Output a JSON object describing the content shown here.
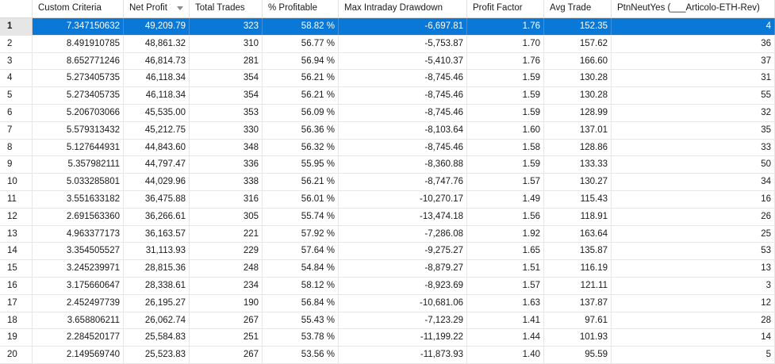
{
  "columns": [
    {
      "key": "idx",
      "label": ""
    },
    {
      "key": "custom_criteria",
      "label": "Custom Criteria"
    },
    {
      "key": "net_profit",
      "label": "Net Profit"
    },
    {
      "key": "total_trades",
      "label": "Total Trades"
    },
    {
      "key": "pct_profitable",
      "label": "% Profitable"
    },
    {
      "key": "max_intraday_drawdown",
      "label": "Max Intraday Drawdown"
    },
    {
      "key": "profit_factor",
      "label": "Profit Factor"
    },
    {
      "key": "avg_trade",
      "label": "Avg Trade"
    },
    {
      "key": "ptn_neut_yes",
      "label": "PtnNeutYes (___Articolo-ETH-Rev)"
    }
  ],
  "sort": {
    "column": "net_profit",
    "direction": "descending",
    "icon": "sort-descending-icon"
  },
  "selected_row": 0,
  "colors": {
    "selection": "#0a78d7",
    "selection_text": "#ffffff",
    "grid_line": "#e6e6e6"
  },
  "rows": [
    [
      "1",
      "7.347150632",
      "49,209.79",
      "323",
      "58.82 %",
      "-6,697.81",
      "1.76",
      "152.35",
      "4"
    ],
    [
      "2",
      "8.491910785",
      "48,861.32",
      "310",
      "56.77 %",
      "-5,753.87",
      "1.70",
      "157.62",
      "36"
    ],
    [
      "3",
      "8.652771246",
      "46,814.73",
      "281",
      "56.94 %",
      "-5,410.37",
      "1.76",
      "166.60",
      "37"
    ],
    [
      "4",
      "5.273405735",
      "46,118.34",
      "354",
      "56.21 %",
      "-8,745.46",
      "1.59",
      "130.28",
      "31"
    ],
    [
      "5",
      "5.273405735",
      "46,118.34",
      "354",
      "56.21 %",
      "-8,745.46",
      "1.59",
      "130.28",
      "55"
    ],
    [
      "6",
      "5.206703066",
      "45,535.00",
      "353",
      "56.09 %",
      "-8,745.46",
      "1.59",
      "128.99",
      "32"
    ],
    [
      "7",
      "5.579313432",
      "45,212.75",
      "330",
      "56.36 %",
      "-8,103.64",
      "1.60",
      "137.01",
      "35"
    ],
    [
      "8",
      "5.127644931",
      "44,843.60",
      "348",
      "56.32 %",
      "-8,745.46",
      "1.58",
      "128.86",
      "33"
    ],
    [
      "9",
      "5.357982111",
      "44,797.47",
      "336",
      "55.95 %",
      "-8,360.88",
      "1.59",
      "133.33",
      "50"
    ],
    [
      "10",
      "5.033285801",
      "44,029.96",
      "338",
      "56.21 %",
      "-8,747.76",
      "1.57",
      "130.27",
      "34"
    ],
    [
      "11",
      "3.551633182",
      "36,475.88",
      "316",
      "56.01 %",
      "-10,270.17",
      "1.49",
      "115.43",
      "16"
    ],
    [
      "12",
      "2.691563360",
      "36,266.61",
      "305",
      "55.74 %",
      "-13,474.18",
      "1.56",
      "118.91",
      "26"
    ],
    [
      "13",
      "4.963377173",
      "36,163.57",
      "221",
      "57.92 %",
      "-7,286.08",
      "1.92",
      "163.64",
      "25"
    ],
    [
      "14",
      "3.354505527",
      "31,113.93",
      "229",
      "57.64 %",
      "-9,275.27",
      "1.65",
      "135.87",
      "53"
    ],
    [
      "15",
      "3.245239971",
      "28,815.36",
      "248",
      "54.84 %",
      "-8,879.27",
      "1.51",
      "116.19",
      "13"
    ],
    [
      "16",
      "3.175660647",
      "28,338.61",
      "234",
      "58.12 %",
      "-8,923.69",
      "1.57",
      "121.11",
      "3"
    ],
    [
      "17",
      "2.452497739",
      "26,195.27",
      "190",
      "56.84 %",
      "-10,681.06",
      "1.63",
      "137.87",
      "12"
    ],
    [
      "18",
      "3.658806211",
      "26,062.74",
      "267",
      "55.43 %",
      "-7,123.29",
      "1.41",
      "97.61",
      "28"
    ],
    [
      "19",
      "2.284520177",
      "25,584.83",
      "251",
      "53.78 %",
      "-11,199.22",
      "1.44",
      "101.93",
      "14"
    ],
    [
      "20",
      "2.149569740",
      "25,523.83",
      "267",
      "53.56 %",
      "-11,873.93",
      "1.40",
      "95.59",
      "5"
    ]
  ]
}
